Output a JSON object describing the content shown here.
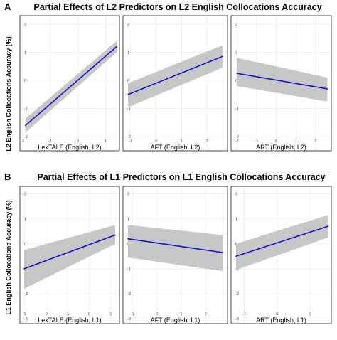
{
  "sections": [
    {
      "letter": "A",
      "title": "Partial Effects of L2 Predictors on L2 English Collocations Accuracy",
      "ylabel": "L2 English Collocations Accuracy (%)"
    },
    {
      "letter": "B",
      "title": "Partial Effects of L1 Predictors on L1 English Collocations Accuracy",
      "ylabel": "L1 English Collocations Accuracy (%)"
    }
  ],
  "colors": {
    "line": "#1515c8",
    "band": "#bdbdbd",
    "grid": "#ebebeb",
    "border": "#333333"
  },
  "chart_data": [
    {
      "type": "line",
      "title": "Partial Effects of L2 Predictors on L2 English Collocations Accuracy",
      "ylabel": "L2 English Collocations Accuracy (%)",
      "ylim": [
        -2.5,
        2.3
      ],
      "yticks": [
        "-2",
        "-1",
        "0",
        "1",
        "2"
      ],
      "panels": [
        {
          "xlabel": "LexTALE (English, L2)",
          "xlim": [
            -2.1,
            1.5
          ],
          "xticks": [
            "-2",
            "-1",
            "0",
            "1"
          ],
          "x": [
            -1.9,
            1.4
          ],
          "y": [
            -1.6,
            1.2
          ],
          "lower": [
            -1.85,
            1.0
          ],
          "upper": [
            -1.35,
            1.4
          ]
        },
        {
          "xlabel": "AFT (English, L2)",
          "xlim": [
            -1.3,
            2.8
          ],
          "xticks": [
            "-1",
            "0",
            "1",
            "2"
          ],
          "x": [
            -1.1,
            2.6
          ],
          "y": [
            -0.5,
            0.85
          ],
          "lower": [
            -0.95,
            0.45
          ],
          "upper": [
            -0.1,
            1.25
          ]
        },
        {
          "xlabel": "ART (English, L2)",
          "xlim": [
            -2.3,
            2.8
          ],
          "xticks": [
            "-2",
            "-1",
            "0",
            "1",
            "2"
          ],
          "x": [
            -2.0,
            2.6
          ],
          "y": [
            0.25,
            -0.3
          ],
          "lower": [
            -0.2,
            -0.75
          ],
          "upper": [
            0.8,
            0.1
          ]
        }
      ]
    },
    {
      "type": "line",
      "title": "Partial Effects of L1 Predictors on L1 English Collocations Accuracy",
      "ylabel": "L1 English Collocations Accuracy (%)",
      "ylim": [
        -3.2,
        2.3
      ],
      "yticks": [
        "-3",
        "-2",
        "-1",
        "0",
        "1",
        "2"
      ],
      "panels": [
        {
          "xlabel": "LexTALE (English, L1)",
          "xlim": [
            -3.2,
            1.4
          ],
          "xticks": [
            "-3",
            "-2",
            "-1",
            "0",
            "1"
          ],
          "x": [
            -3.0,
            1.2
          ],
          "y": [
            -1.0,
            0.35
          ],
          "lower": [
            -1.8,
            0.0
          ],
          "upper": [
            -0.25,
            0.75
          ]
        },
        {
          "xlabel": "AFT (English, L1)",
          "xlim": [
            -1.4,
            2.9
          ],
          "xticks": [
            "-1",
            "0",
            "1",
            "2"
          ],
          "x": [
            -1.2,
            2.7
          ],
          "y": [
            0.2,
            -0.35
          ],
          "lower": [
            -0.55,
            -1.1
          ],
          "upper": [
            0.75,
            0.35
          ]
        },
        {
          "xlabel": "ART (English, L1)",
          "xlim": [
            -1.4,
            1.65
          ],
          "xticks": [
            "-1",
            "0",
            "1"
          ],
          "x": [
            -1.25,
            1.55
          ],
          "y": [
            -0.5,
            0.7
          ],
          "lower": [
            -1.05,
            0.25
          ],
          "upper": [
            0.0,
            1.15
          ]
        }
      ]
    }
  ]
}
